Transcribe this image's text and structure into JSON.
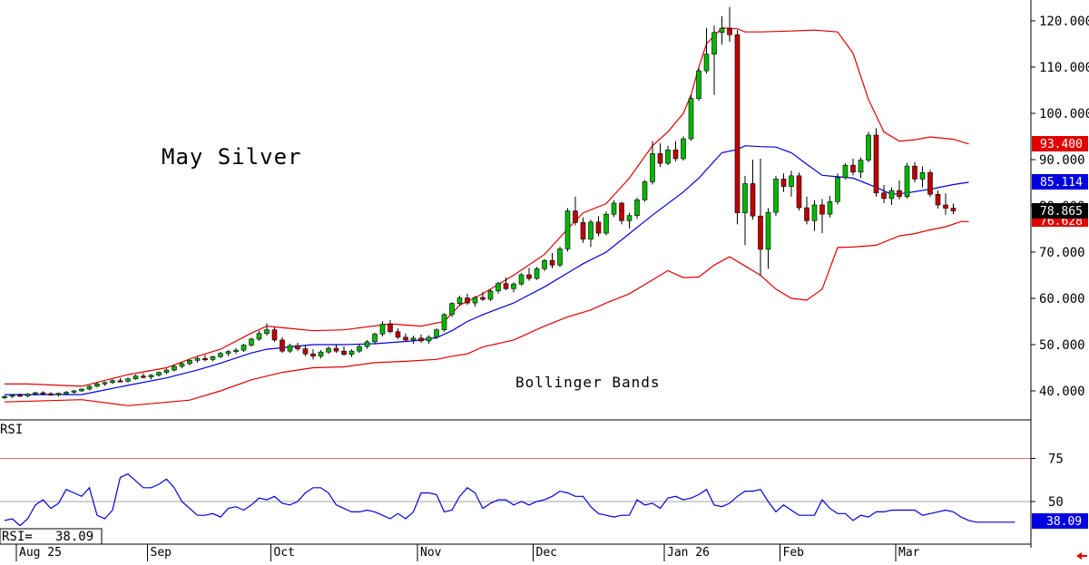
{
  "chart_data": [
    {
      "type": "candlestick",
      "title": "May Silver",
      "annotation": "Bollinger Bands",
      "ylim": [
        33,
        123
      ],
      "y_ticks": [
        "120.000",
        "110.000",
        "100.000",
        "90.000",
        "80.000",
        "70.000",
        "60.000",
        "50.000",
        "40.000"
      ],
      "x_labels": [
        "Aug 25",
        "Sep",
        "Oct",
        "Nov",
        "Dec",
        "Jan 26",
        "Feb",
        "Mar"
      ],
      "last_price": "78.865",
      "upper_band_label": "93.400",
      "middle_band_label": "85.114",
      "lower_band_label": "76.628",
      "colors": {
        "up": "#00b800",
        "down": "#c00000",
        "band": "#e00000",
        "middle": "#0000e0",
        "last_bg": "#000000"
      },
      "candles": [
        [
          38.5,
          39.0,
          38.2,
          38.8
        ],
        [
          38.8,
          39.3,
          38.5,
          39.1
        ],
        [
          39.1,
          39.4,
          38.7,
          38.9
        ],
        [
          38.9,
          39.5,
          38.6,
          39.3
        ],
        [
          39.3,
          39.8,
          39.0,
          39.6
        ],
        [
          39.6,
          39.9,
          39.1,
          39.4
        ],
        [
          39.4,
          39.7,
          38.9,
          39.2
        ],
        [
          39.2,
          39.6,
          38.8,
          39.5
        ],
        [
          39.5,
          40.0,
          39.2,
          39.7
        ],
        [
          39.7,
          40.2,
          39.4,
          40.0
        ],
        [
          40.0,
          40.5,
          39.8,
          40.4
        ],
        [
          40.4,
          41.2,
          40.1,
          41.0
        ],
        [
          41.0,
          41.8,
          40.7,
          41.5
        ],
        [
          41.5,
          42.0,
          41.1,
          41.8
        ],
        [
          41.8,
          42.5,
          41.5,
          42.2
        ],
        [
          42.2,
          42.8,
          41.9,
          42.1
        ],
        [
          42.1,
          42.9,
          41.8,
          42.6
        ],
        [
          42.6,
          43.5,
          42.4,
          43.2
        ],
        [
          43.2,
          43.8,
          42.7,
          43.0
        ],
        [
          43.0,
          43.6,
          42.5,
          43.4
        ],
        [
          43.4,
          44.2,
          43.1,
          44.0
        ],
        [
          44.0,
          44.8,
          43.6,
          44.5
        ],
        [
          44.5,
          45.6,
          44.2,
          45.3
        ],
        [
          45.3,
          46.2,
          44.9,
          45.9
        ],
        [
          45.9,
          46.8,
          45.5,
          46.6
        ],
        [
          46.6,
          47.4,
          46.1,
          47.0
        ],
        [
          47.0,
          47.8,
          46.4,
          46.8
        ],
        [
          46.8,
          47.6,
          46.4,
          47.4
        ],
        [
          47.4,
          48.4,
          47.1,
          48.1
        ],
        [
          48.1,
          48.8,
          47.5,
          48.5
        ],
        [
          48.5,
          49.3,
          48.0,
          48.8
        ],
        [
          48.8,
          50.2,
          48.4,
          49.9
        ],
        [
          49.9,
          51.5,
          49.6,
          51.2
        ],
        [
          51.2,
          53.0,
          50.8,
          52.4
        ],
        [
          52.4,
          54.6,
          51.9,
          53.2
        ],
        [
          53.2,
          53.8,
          50.6,
          51.0
        ],
        [
          51.0,
          51.6,
          48.2,
          48.6
        ],
        [
          48.6,
          50.2,
          48.2,
          49.8
        ],
        [
          49.8,
          50.4,
          48.6,
          49.1
        ],
        [
          49.1,
          50.0,
          47.5,
          48.0
        ],
        [
          48.0,
          49.0,
          46.8,
          47.5
        ],
        [
          47.5,
          48.8,
          47.0,
          48.4
        ],
        [
          48.4,
          49.6,
          48.0,
          49.2
        ],
        [
          49.2,
          50.0,
          48.2,
          48.6
        ],
        [
          48.6,
          49.6,
          47.6,
          47.9
        ],
        [
          47.9,
          49.0,
          47.3,
          48.6
        ],
        [
          48.6,
          50.0,
          48.2,
          49.6
        ],
        [
          49.6,
          51.0,
          49.1,
          50.6
        ],
        [
          50.6,
          52.6,
          50.1,
          52.3
        ],
        [
          52.3,
          55.0,
          51.8,
          54.4
        ],
        [
          54.4,
          55.3,
          52.4,
          52.8
        ],
        [
          52.8,
          53.5,
          51.2,
          51.6
        ],
        [
          51.6,
          52.4,
          50.6,
          51.0
        ],
        [
          51.0,
          51.9,
          50.2,
          51.4
        ],
        [
          51.4,
          52.2,
          50.4,
          50.8
        ],
        [
          50.8,
          52.0,
          50.2,
          51.6
        ],
        [
          51.6,
          53.5,
          51.2,
          53.2
        ],
        [
          53.2,
          56.8,
          52.8,
          56.5
        ],
        [
          56.5,
          59.2,
          56.0,
          58.9
        ],
        [
          58.9,
          60.6,
          58.4,
          60.1
        ],
        [
          60.1,
          61.0,
          58.6,
          59.0
        ],
        [
          59.0,
          60.5,
          58.2,
          60.2
        ],
        [
          60.2,
          61.4,
          59.4,
          59.8
        ],
        [
          59.8,
          62.0,
          59.4,
          61.6
        ],
        [
          61.6,
          63.6,
          61.0,
          63.2
        ],
        [
          63.2,
          64.5,
          61.8,
          62.1
        ],
        [
          62.1,
          63.5,
          61.3,
          63.1
        ],
        [
          63.1,
          65.5,
          62.8,
          65.1
        ],
        [
          65.1,
          66.6,
          63.8,
          64.3
        ],
        [
          64.3,
          66.8,
          64.0,
          66.4
        ],
        [
          66.4,
          68.5,
          65.9,
          68.2
        ],
        [
          68.2,
          69.8,
          66.5,
          67.2
        ],
        [
          67.2,
          71.2,
          66.8,
          70.7
        ],
        [
          70.7,
          79.5,
          70.1,
          78.9
        ],
        [
          78.9,
          82.0,
          75.8,
          76.4
        ],
        [
          76.4,
          77.5,
          72.0,
          72.8
        ],
        [
          72.8,
          77.0,
          71.1,
          76.5
        ],
        [
          76.5,
          77.8,
          73.4,
          74.1
        ],
        [
          74.1,
          78.8,
          73.6,
          78.2
        ],
        [
          78.2,
          81.2,
          77.6,
          80.6
        ],
        [
          80.6,
          80.9,
          76.0,
          76.8
        ],
        [
          76.8,
          78.5,
          75.1,
          77.9
        ],
        [
          77.9,
          81.8,
          77.2,
          81.3
        ],
        [
          81.3,
          85.6,
          80.9,
          85.2
        ],
        [
          85.2,
          94.0,
          84.6,
          91.3
        ],
        [
          91.3,
          93.5,
          88.4,
          89.2
        ],
        [
          89.2,
          93.0,
          88.8,
          92.1
        ],
        [
          92.1,
          94.0,
          89.6,
          90.2
        ],
        [
          90.2,
          95.0,
          89.8,
          94.5
        ],
        [
          94.5,
          104.0,
          94.1,
          103.2
        ],
        [
          103.2,
          109.8,
          102.7,
          109.2
        ],
        [
          109.2,
          118.5,
          108.6,
          112.8
        ],
        [
          112.8,
          119.0,
          104.0,
          117.5
        ],
        [
          117.5,
          121.0,
          114.9,
          118.4
        ],
        [
          118.4,
          123.0,
          115.5,
          117.0
        ],
        [
          117.0,
          118.0,
          76.0,
          78.5
        ],
        [
          78.5,
          86.5,
          71.5,
          84.8
        ],
        [
          84.8,
          90.0,
          77.0,
          77.8
        ],
        [
          77.8,
          90.2,
          64.9,
          70.6
        ],
        [
          70.6,
          79.5,
          66.4,
          78.6
        ],
        [
          78.6,
          86.5,
          77.8,
          85.8
        ],
        [
          85.8,
          87.0,
          83.0,
          84.2
        ],
        [
          84.2,
          87.6,
          82.0,
          86.5
        ],
        [
          86.5,
          87.2,
          79.0,
          79.6
        ],
        [
          79.6,
          82.0,
          76.0,
          76.8
        ],
        [
          76.8,
          81.2,
          74.6,
          80.2
        ],
        [
          80.2,
          81.5,
          74.1,
          78.2
        ],
        [
          78.2,
          82.1,
          77.5,
          80.9
        ],
        [
          80.9,
          87.0,
          80.3,
          86.1
        ],
        [
          86.1,
          89.2,
          85.7,
          88.8
        ],
        [
          88.8,
          90.2,
          86.6,
          87.3
        ],
        [
          87.3,
          90.5,
          86.0,
          89.9
        ],
        [
          89.9,
          96.0,
          89.4,
          95.3
        ],
        [
          95.3,
          96.8,
          82.0,
          82.8
        ],
        [
          82.8,
          84.5,
          80.6,
          81.6
        ],
        [
          81.6,
          84.0,
          80.2,
          83.3
        ],
        [
          83.3,
          85.5,
          81.4,
          82.0
        ],
        [
          82.0,
          89.3,
          81.6,
          88.6
        ],
        [
          88.6,
          89.5,
          85.1,
          85.8
        ],
        [
          85.8,
          88.5,
          84.0,
          87.2
        ],
        [
          87.2,
          87.8,
          81.9,
          82.5
        ],
        [
          82.5,
          83.3,
          79.4,
          80.2
        ],
        [
          80.2,
          82.7,
          78.1,
          79.5
        ],
        [
          79.5,
          80.5,
          78.2,
          78.9
        ]
      ],
      "upper_band": [
        [
          0,
          41.5
        ],
        [
          3,
          41.5
        ],
        [
          10,
          41.0
        ],
        [
          16,
          43.5
        ],
        [
          21,
          45.0
        ],
        [
          25,
          47.5
        ],
        [
          28,
          49.0
        ],
        [
          32,
          52.5
        ],
        [
          34,
          54.0
        ],
        [
          37,
          53.5
        ],
        [
          40,
          53.0
        ],
        [
          44,
          53.2
        ],
        [
          50,
          54.5
        ],
        [
          54,
          54.0
        ],
        [
          57,
          55.0
        ],
        [
          59,
          58.5
        ],
        [
          62,
          61.0
        ],
        [
          66,
          65.0
        ],
        [
          70,
          69.5
        ],
        [
          73,
          75.0
        ],
        [
          75,
          78.5
        ],
        [
          78,
          80.5
        ],
        [
          81,
          86.0
        ],
        [
          84,
          93.0
        ],
        [
          86,
          96.0
        ],
        [
          88,
          100.0
        ],
        [
          89,
          104.0
        ],
        [
          90,
          110.0
        ],
        [
          91,
          115.0
        ],
        [
          93,
          118.5
        ],
        [
          95,
          118.3
        ],
        [
          96,
          117.6
        ],
        [
          98,
          117.6
        ],
        [
          102,
          117.8
        ],
        [
          105,
          118.0
        ],
        [
          108,
          117.6
        ],
        [
          110,
          113.0
        ],
        [
          112,
          103.0
        ],
        [
          114,
          96.0
        ],
        [
          116,
          94.0
        ],
        [
          118,
          94.3
        ],
        [
          120,
          94.9
        ],
        [
          123,
          94.4
        ],
        [
          125,
          93.4
        ]
      ],
      "middle_band": [
        [
          0,
          39.2
        ],
        [
          10,
          39.2
        ],
        [
          16,
          41.2
        ],
        [
          21,
          42.8
        ],
        [
          25,
          44.5
        ],
        [
          28,
          46.0
        ],
        [
          32,
          48.2
        ],
        [
          34,
          49.0
        ],
        [
          37,
          49.5
        ],
        [
          40,
          50.0
        ],
        [
          44,
          50.0
        ],
        [
          48,
          50.2
        ],
        [
          53,
          50.8
        ],
        [
          56,
          51.5
        ],
        [
          58,
          53.0
        ],
        [
          60,
          55.0
        ],
        [
          62,
          56.5
        ],
        [
          66,
          59.0
        ],
        [
          70,
          62.5
        ],
        [
          73,
          65.5
        ],
        [
          75,
          67.5
        ],
        [
          78,
          70.0
        ],
        [
          81,
          74.0
        ],
        [
          84,
          78.0
        ],
        [
          88,
          83.0
        ],
        [
          90,
          86.0
        ],
        [
          93,
          91.5
        ],
        [
          95,
          92.2
        ],
        [
          96,
          93.0
        ],
        [
          98,
          92.8
        ],
        [
          100,
          92.7
        ],
        [
          102,
          91.5
        ],
        [
          104,
          89.0
        ],
        [
          106,
          86.6
        ],
        [
          108,
          86.3
        ],
        [
          110,
          86.0
        ],
        [
          113,
          84.0
        ],
        [
          115,
          82.5
        ],
        [
          117,
          82.8
        ],
        [
          120,
          83.6
        ],
        [
          123,
          84.6
        ],
        [
          125,
          85.1
        ]
      ],
      "lower_band": [
        [
          0,
          37.6
        ],
        [
          10,
          38.1
        ],
        [
          16,
          36.8
        ],
        [
          20,
          37.4
        ],
        [
          24,
          38.0
        ],
        [
          28,
          40.0
        ],
        [
          32,
          42.4
        ],
        [
          36,
          44.0
        ],
        [
          40,
          45.0
        ],
        [
          44,
          45.2
        ],
        [
          48,
          46.1
        ],
        [
          52,
          46.4
        ],
        [
          56,
          46.8
        ],
        [
          58,
          47.5
        ],
        [
          60,
          48.0
        ],
        [
          62,
          49.5
        ],
        [
          66,
          51.0
        ],
        [
          70,
          54.0
        ],
        [
          73,
          56.0
        ],
        [
          76,
          57.5
        ],
        [
          78,
          59.0
        ],
        [
          81,
          61.0
        ],
        [
          84,
          64.0
        ],
        [
          86,
          66.0
        ],
        [
          88,
          64.5
        ],
        [
          90,
          64.6
        ],
        [
          92,
          67.2
        ],
        [
          94,
          69.0
        ],
        [
          96,
          67.0
        ],
        [
          98,
          65.0
        ],
        [
          100,
          62.0
        ],
        [
          102,
          60.0
        ],
        [
          104,
          59.6
        ],
        [
          106,
          62.0
        ],
        [
          108,
          71.0
        ],
        [
          110,
          71.1
        ],
        [
          113,
          71.5
        ],
        [
          116,
          73.5
        ],
        [
          118,
          74.0
        ],
        [
          120,
          74.8
        ],
        [
          122,
          75.5
        ],
        [
          124,
          76.6
        ],
        [
          125,
          76.6
        ]
      ]
    },
    {
      "type": "line",
      "title": "RSI",
      "ylim": [
        27,
        93
      ],
      "y_ticks": [
        "75",
        "50"
      ],
      "readout": "RSI=   38.09",
      "last_value": "38.09",
      "reference_lines": [
        75,
        50
      ],
      "values": [
        39,
        40,
        36,
        40,
        48,
        51,
        46,
        49,
        57,
        55,
        53,
        58,
        42,
        40,
        45,
        64,
        66,
        62,
        58,
        58,
        60,
        63,
        58,
        50,
        46,
        42,
        42,
        43,
        41,
        46,
        47,
        45,
        48,
        52,
        51,
        53,
        49,
        48,
        50,
        55,
        58,
        58,
        55,
        48,
        46,
        44,
        44,
        45,
        44,
        42,
        40,
        43,
        40,
        44,
        55,
        55,
        54,
        44,
        45,
        53,
        58,
        55,
        46,
        49,
        51,
        51,
        48,
        50,
        48,
        50,
        51,
        53,
        56,
        55,
        53,
        53,
        47,
        43,
        42,
        41,
        42,
        42,
        51,
        48,
        49,
        46,
        52,
        53,
        51,
        52,
        54,
        57,
        48,
        47,
        49,
        53,
        56,
        56,
        57,
        50,
        44,
        48,
        45,
        42,
        42,
        42,
        51,
        46,
        43,
        43,
        39,
        42,
        41,
        44,
        44,
        45,
        45,
        45,
        45,
        42,
        43,
        44,
        45,
        44,
        41,
        39,
        38,
        38,
        38,
        38,
        38,
        38
      ]
    }
  ]
}
